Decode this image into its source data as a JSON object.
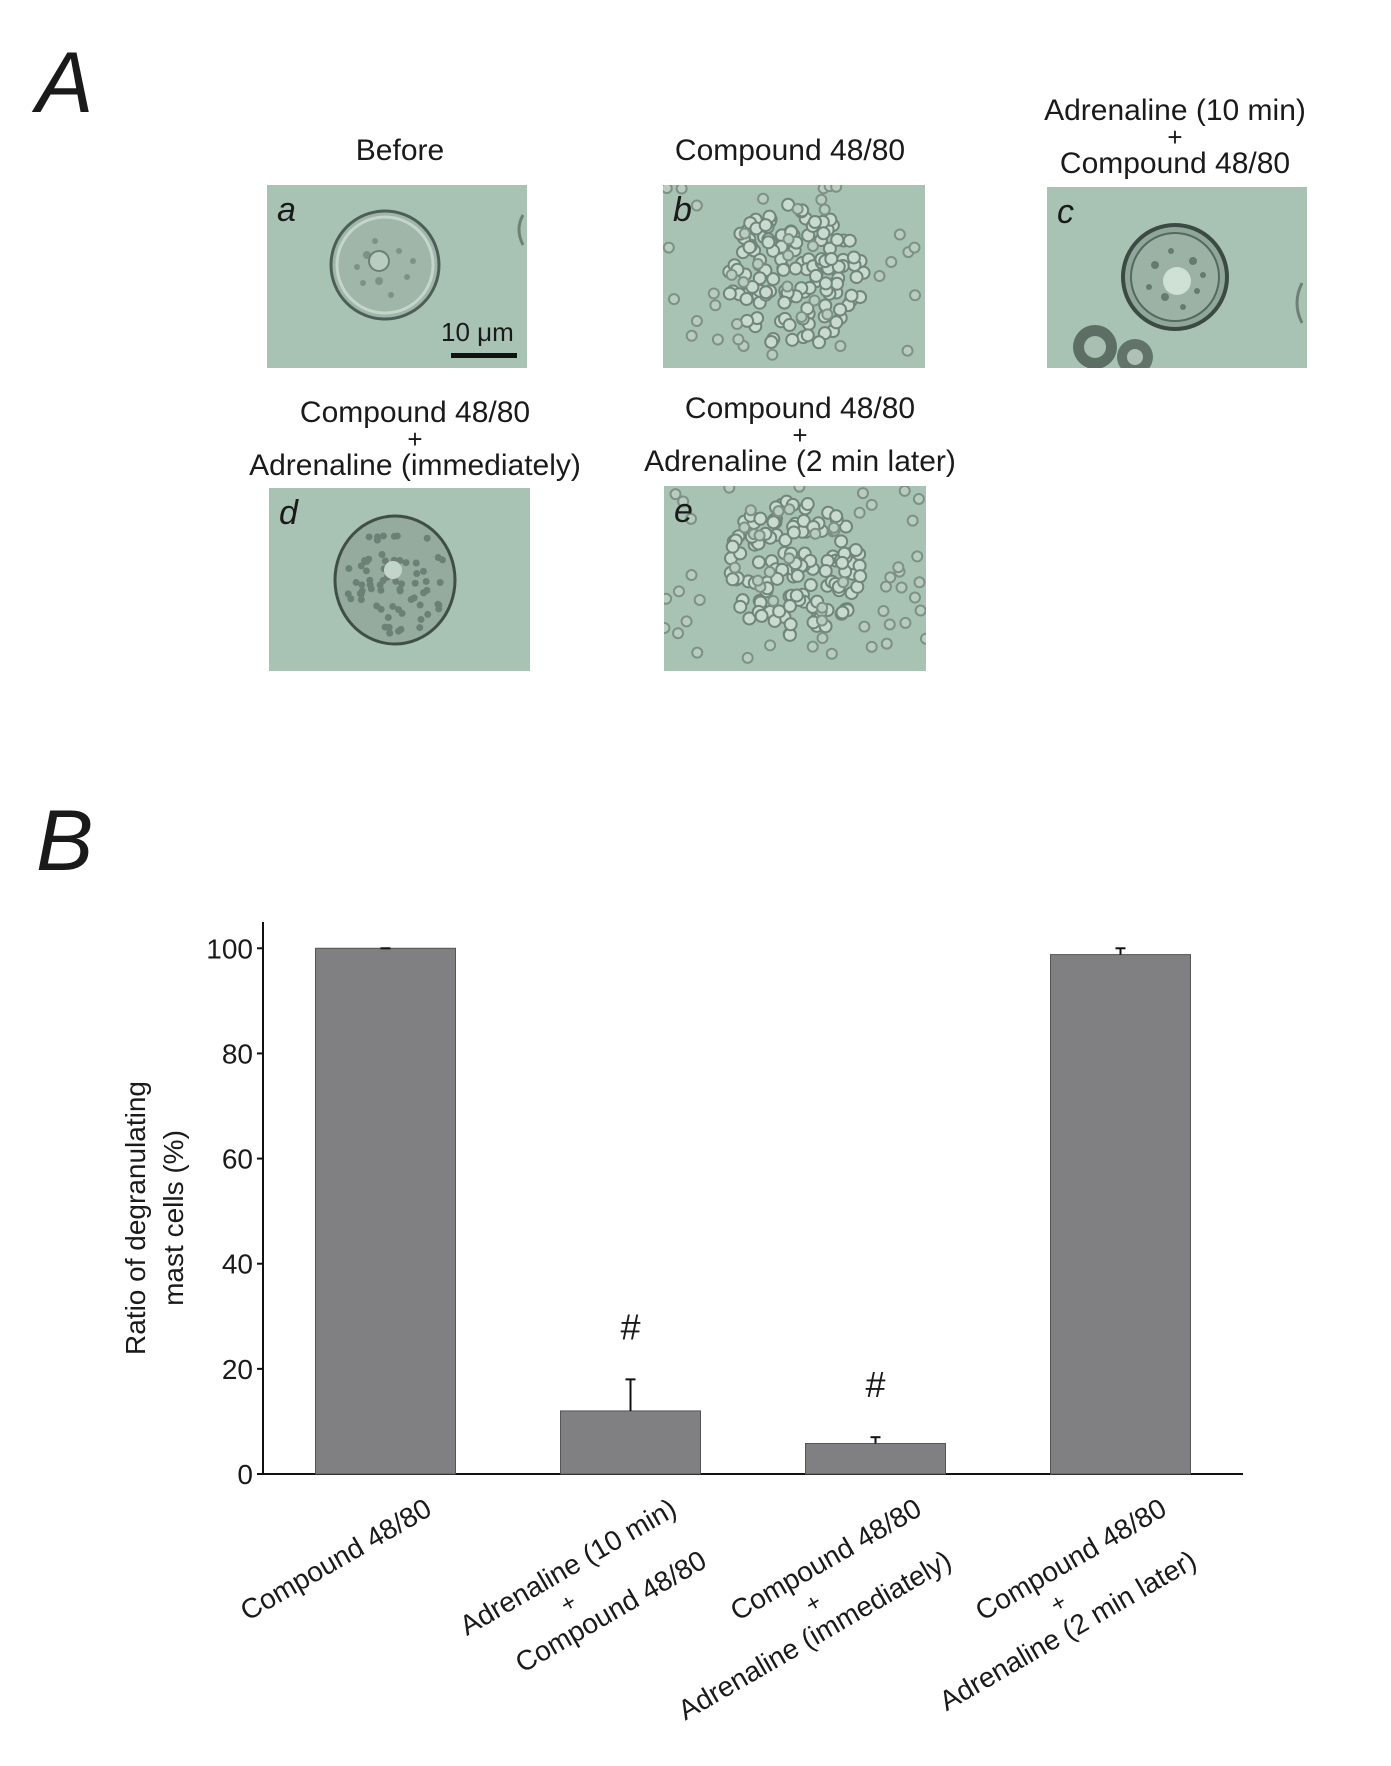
{
  "panel_a": {
    "letter": "A",
    "images": [
      {
        "sub": "a",
        "caption": [
          "Before"
        ]
      },
      {
        "sub": "b",
        "caption": [
          "Compound 48/80"
        ]
      },
      {
        "sub": "c",
        "caption": [
          "Adrenaline (10 min)",
          "+",
          "Compound 48/80"
        ]
      },
      {
        "sub": "d",
        "caption": [
          "Compound 48/80",
          "+",
          "Adrenaline (immediately)"
        ]
      },
      {
        "sub": "e",
        "caption": [
          "Compound 48/80",
          "+",
          "Adrenaline (2 min later)"
        ]
      }
    ],
    "scale_bar": "10 μm"
  },
  "panel_b": {
    "letter": "B"
  },
  "chart_data": {
    "type": "bar",
    "categories": [
      [
        "Compound 48/80"
      ],
      [
        "Adrenaline (10 min)",
        "+",
        "Compound 48/80"
      ],
      [
        "Compound 48/80",
        "+",
        "Adrenaline (immediately)"
      ],
      [
        "Compound 48/80",
        "+",
        "Adrenaline (2 min later)"
      ]
    ],
    "values": [
      100,
      12,
      5.8,
      98.8
    ],
    "errors": [
      0,
      6,
      1.2,
      1.2
    ],
    "annotations": [
      "",
      "#",
      "#",
      ""
    ],
    "ylabel": [
      "Ratio of degranulating",
      "mast cells    (%)"
    ],
    "yticks": [
      "0",
      "20",
      "40",
      "60",
      "80",
      "100"
    ],
    "ylim": [
      0,
      105
    ],
    "bar_color": "#808083",
    "grid": false
  }
}
